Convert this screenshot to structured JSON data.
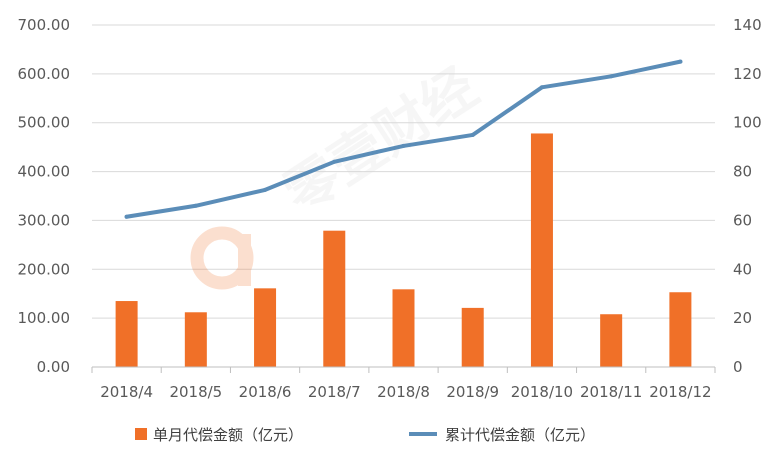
{
  "chart_data": {
    "type": "bar+line",
    "categories": [
      "2018/4",
      "2018/5",
      "2018/6",
      "2018/7",
      "2018/8",
      "2018/9",
      "2018/10",
      "2018/11",
      "2018/12"
    ],
    "series": [
      {
        "name": "单月代偿金额（亿元）",
        "type": "bar",
        "axis": "left",
        "color": "#f07028",
        "values": [
          135,
          112,
          161,
          279,
          159,
          121,
          478,
          108,
          153
        ]
      },
      {
        "name": "累计代偿金额（亿元）",
        "type": "line",
        "axis": "right",
        "color": "#5b8db8",
        "values": [
          61.5,
          66,
          72.5,
          84,
          90.5,
          95,
          114.5,
          119,
          125
        ]
      }
    ],
    "y_left": {
      "ylim": [
        0,
        700
      ],
      "ticks": [
        "0.00",
        "100.00",
        "200.00",
        "300.00",
        "400.00",
        "500.00",
        "600.00",
        "700.00"
      ]
    },
    "y_right": {
      "ylim": [
        0,
        140
      ],
      "ticks": [
        "0",
        "20",
        "40",
        "60",
        "80",
        "100",
        "120",
        "140"
      ]
    },
    "grid": true,
    "legend_position": "bottom",
    "watermark": "零壹财经"
  }
}
